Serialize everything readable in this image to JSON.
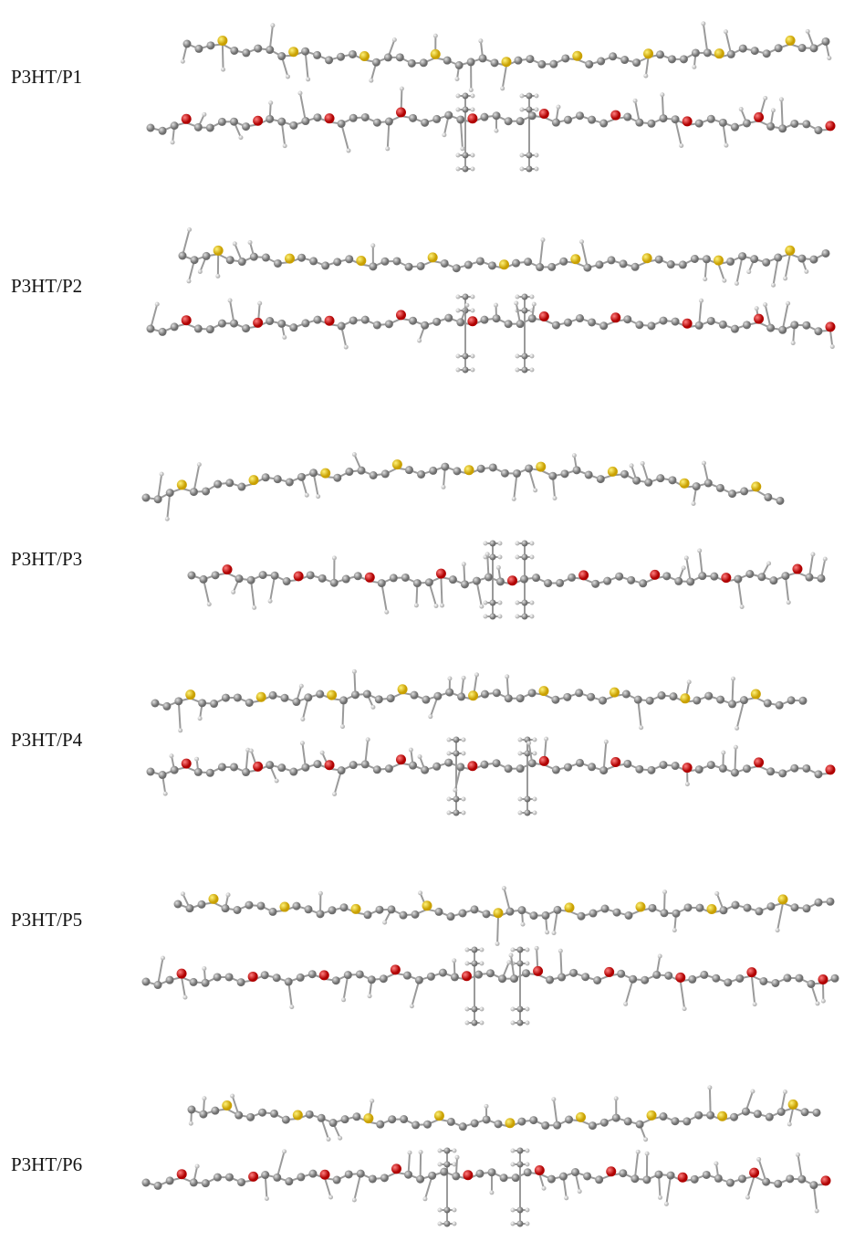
{
  "labels": [
    "P3HT/P1",
    "P3HT/P2",
    "P3HT/P3",
    "P3HT/P4",
    "P3HT/P5",
    "P3HT/P6"
  ]
}
